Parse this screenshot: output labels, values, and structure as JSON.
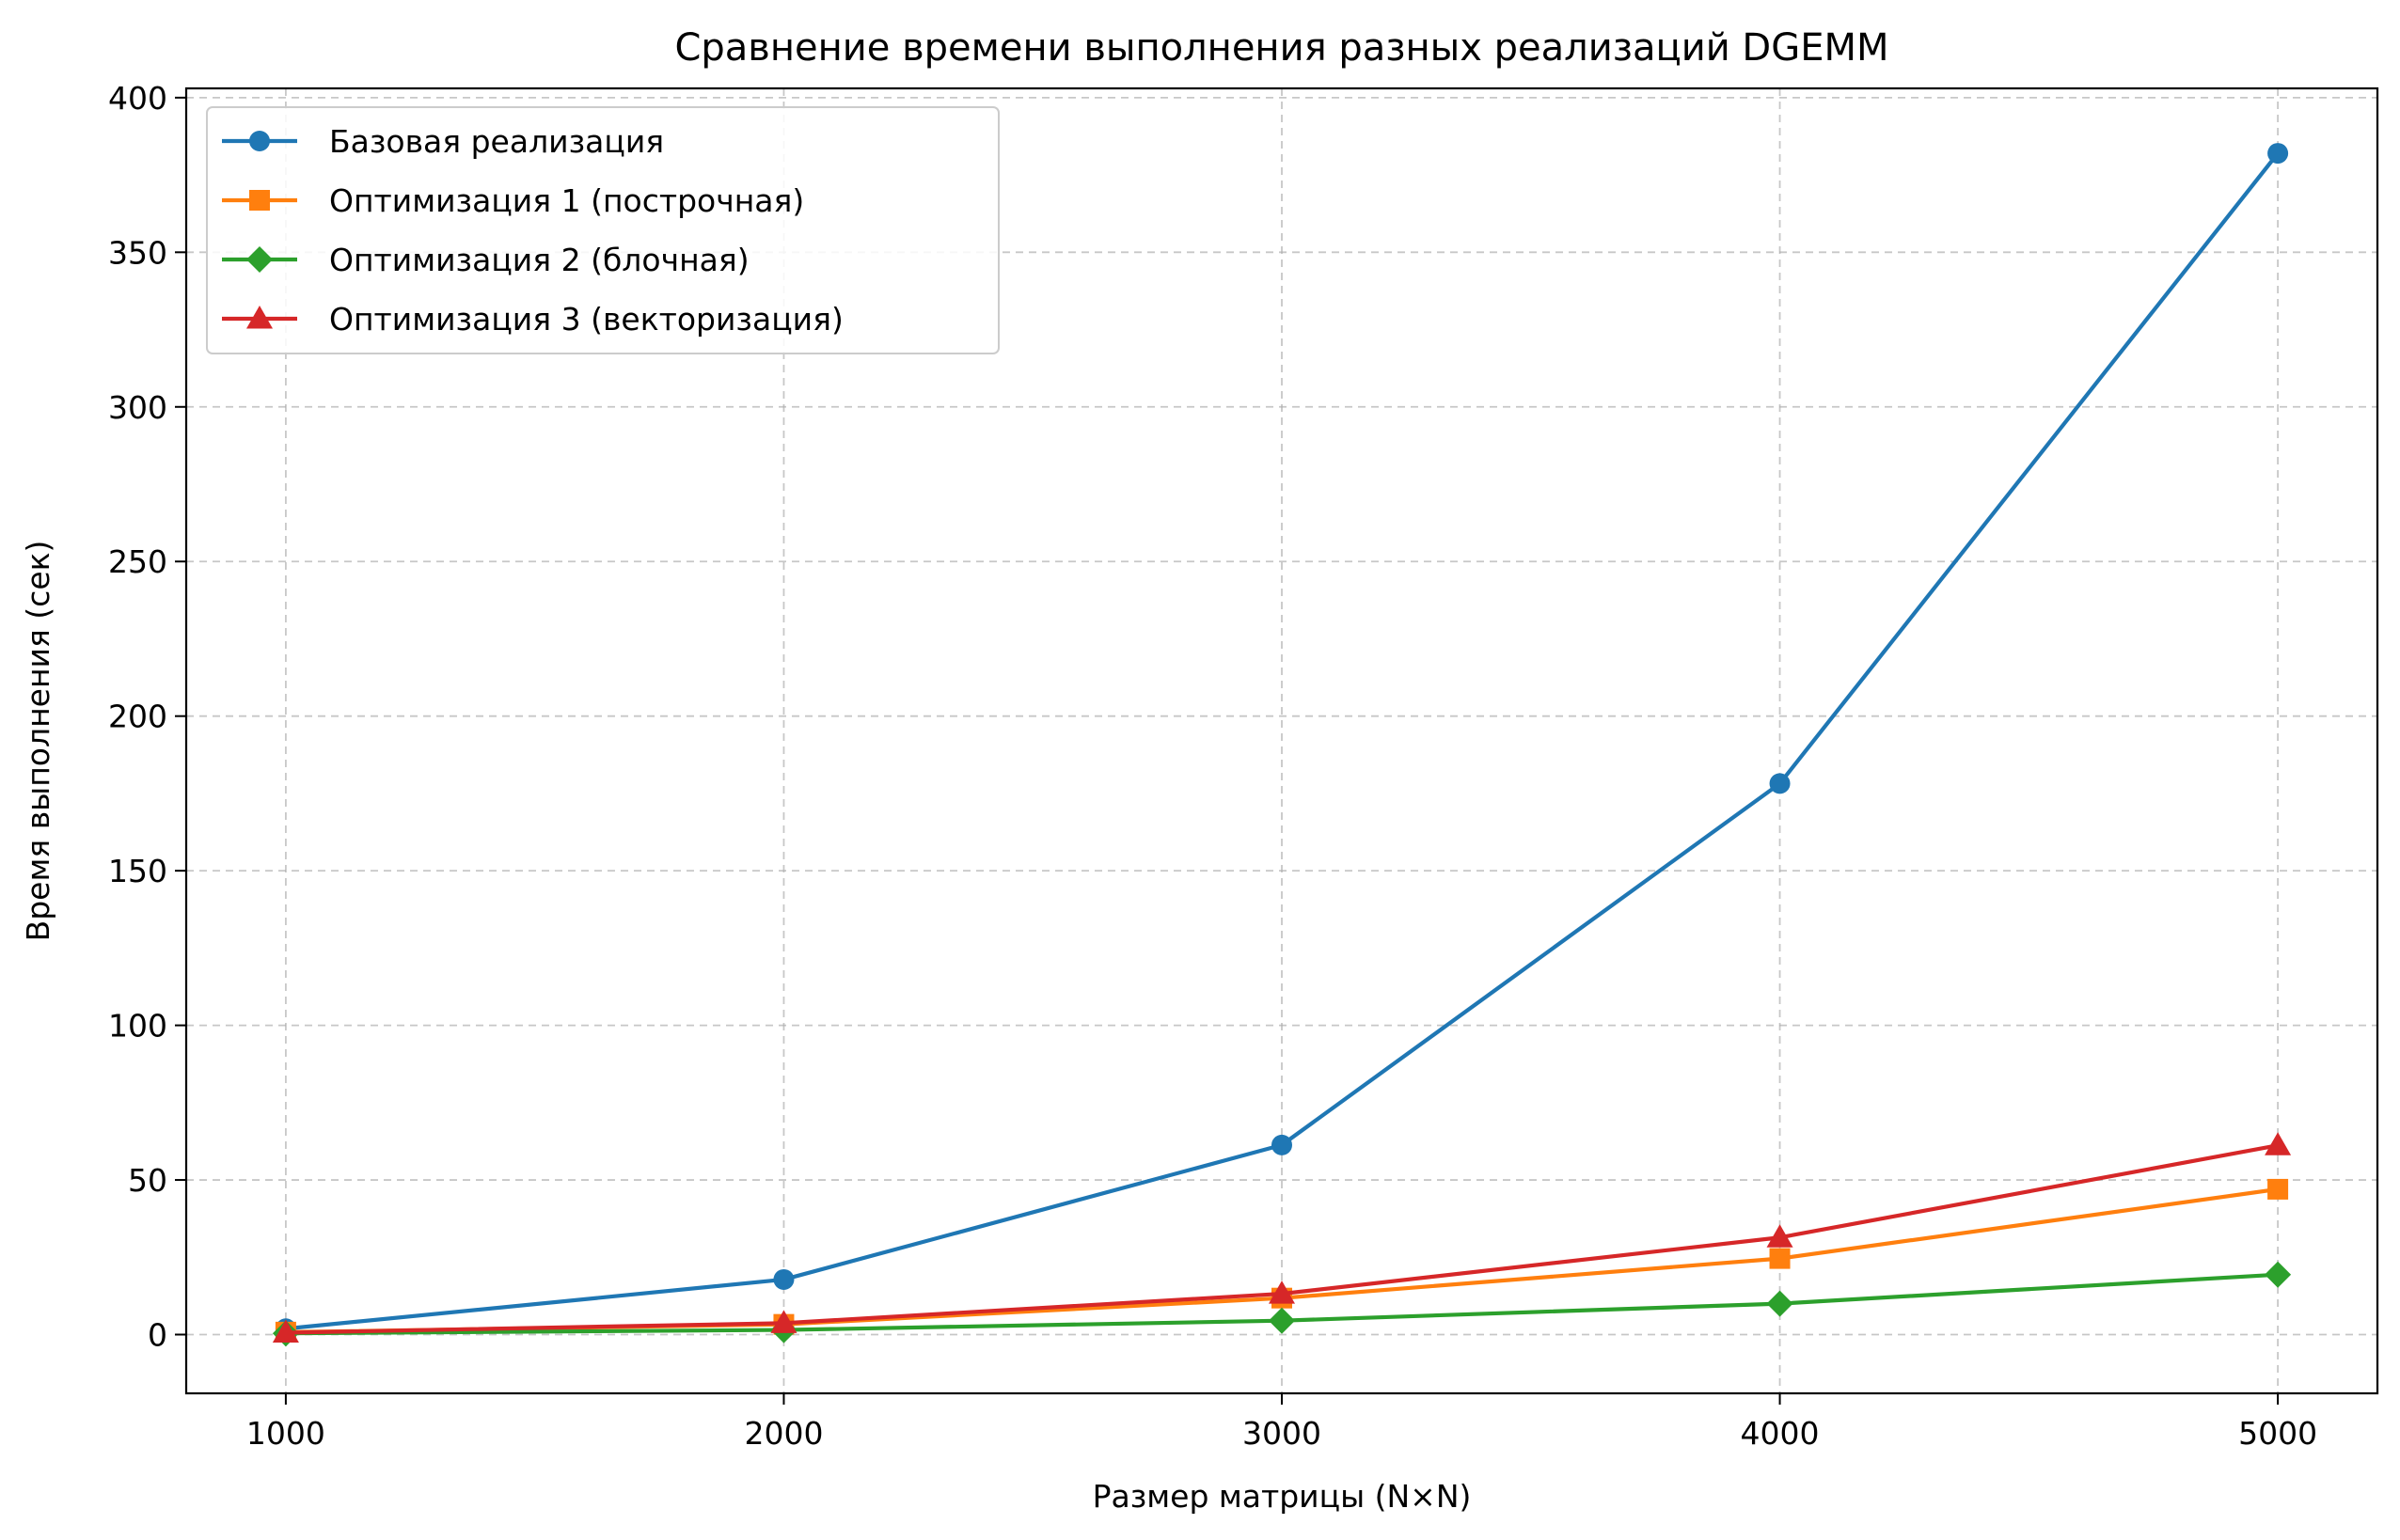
{
  "chart_data": {
    "type": "line",
    "title": "Сравнение времени выполнения разных реализаций DGEMM",
    "xlabel": "Размер матрицы (N×N)",
    "ylabel": "Время выполнения (сек)",
    "x": [
      1000,
      2000,
      3000,
      4000,
      5000
    ],
    "xticks": [
      "1000",
      "2000",
      "3000",
      "4000",
      "5000"
    ],
    "yticks": [
      "0",
      "50",
      "100",
      "150",
      "200",
      "250",
      "300",
      "350",
      "400"
    ],
    "xlim": [
      800,
      5200
    ],
    "ylim": [
      -19,
      403
    ],
    "grid": true,
    "legend_position": "top-left",
    "series": [
      {
        "name": "Базовая реализация",
        "color": "#1f77b4",
        "marker": "circle",
        "values": [
          1.9,
          17.8,
          61.3,
          178.2,
          382.0
        ]
      },
      {
        "name": "Оптимизация 1 (построчная)",
        "color": "#ff7f0e",
        "marker": "square",
        "values": [
          0.8,
          3.3,
          11.8,
          24.6,
          47.0
        ]
      },
      {
        "name": "Оптимизация 2 (блочная)",
        "color": "#2ca02c",
        "marker": "diamond",
        "values": [
          0.4,
          1.5,
          4.5,
          10.0,
          19.4
        ]
      },
      {
        "name": "Оптимизация 3 (векторизация)",
        "color": "#d62728",
        "marker": "triangle",
        "values": [
          0.6,
          3.7,
          13.2,
          31.4,
          61.2
        ]
      }
    ]
  }
}
